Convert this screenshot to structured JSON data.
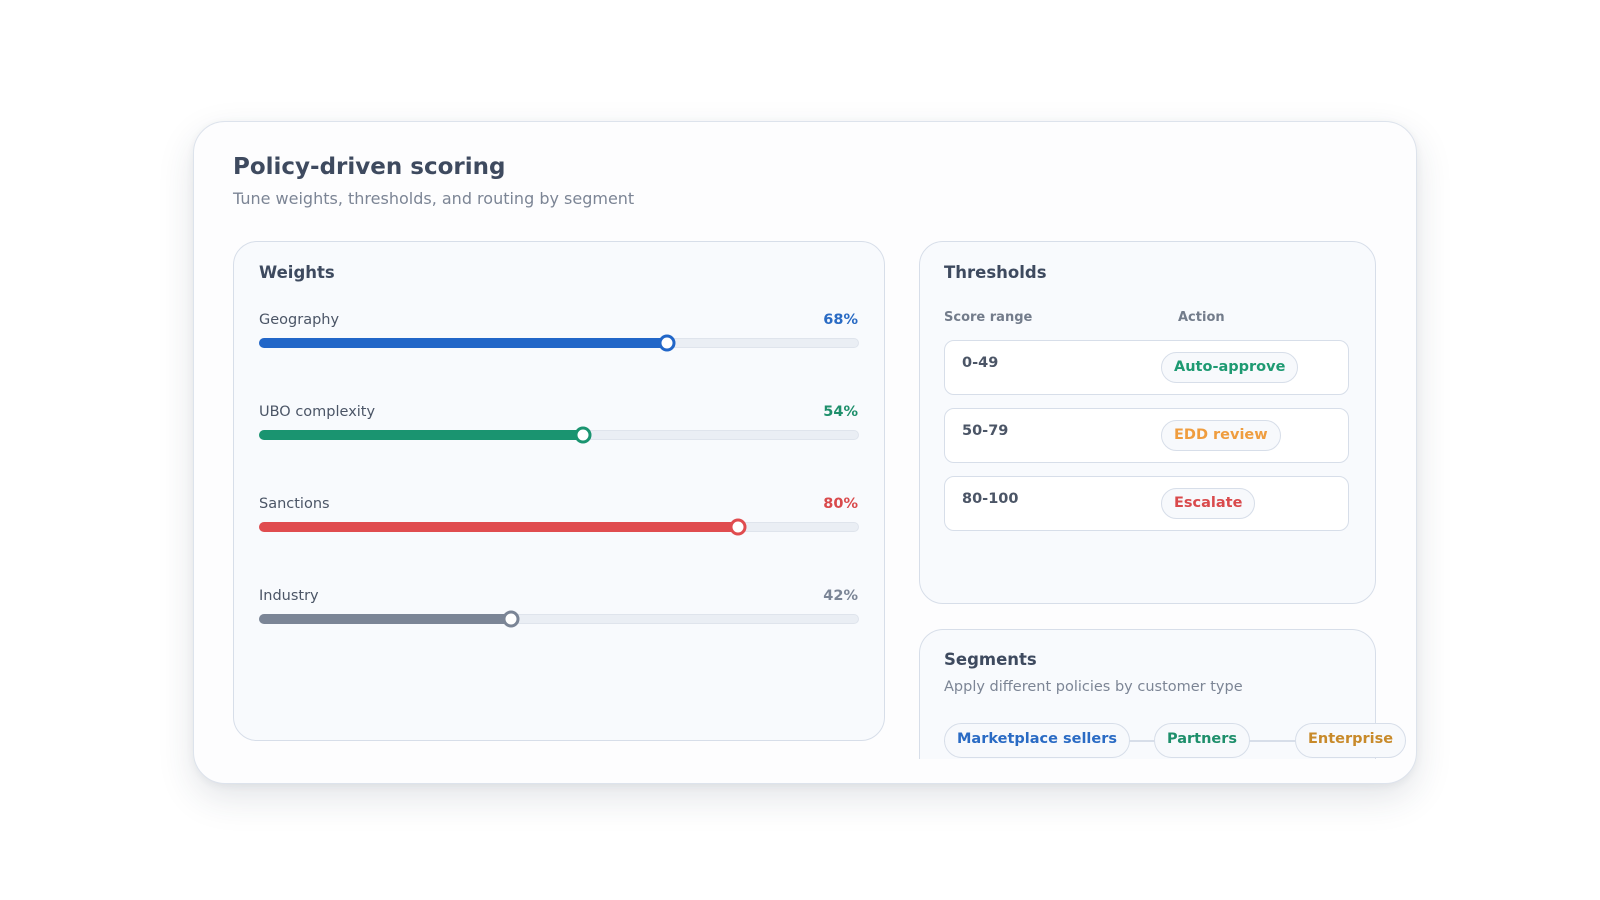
{
  "header": {
    "title": "Policy-driven scoring",
    "subtitle": "Tune weights, thresholds, and routing by segment"
  },
  "weights": {
    "title": "Weights",
    "items": [
      {
        "label": "Geography",
        "value_text": "68%",
        "value": 0.68,
        "color": "#2166c8",
        "value_color": "#2a6bc4"
      },
      {
        "label": "UBO complexity",
        "value_text": "54%",
        "value": 0.54,
        "color": "#1a9470",
        "value_color": "#1e8f6b"
      },
      {
        "label": "Sanctions",
        "value_text": "80%",
        "value": 0.8,
        "color": "#e04c4f",
        "value_color": "#d94a4c"
      },
      {
        "label": "Industry",
        "value_text": "42%",
        "value": 0.42,
        "color": "#7b8596",
        "value_color": "#7b8596"
      }
    ]
  },
  "thresholds": {
    "title": "Thresholds",
    "col_range": "Score range",
    "col_action": "Action",
    "rows": [
      {
        "range": "0-49",
        "action": "Auto-approve",
        "color": "#1e9a72"
      },
      {
        "range": "50-79",
        "action": "EDD review",
        "color": "#ef9d3f"
      },
      {
        "range": "80-100",
        "action": "Escalate",
        "color": "#d94a4c"
      }
    ]
  },
  "segments": {
    "title": "Segments",
    "subtitle": "Apply different policies by customer type",
    "items": [
      {
        "label": "Marketplace sellers",
        "color": "#2a6bc4"
      },
      {
        "label": "Partners",
        "color": "#1e8f6b"
      },
      {
        "label": "Enterprise",
        "color": "#c88a2a"
      }
    ]
  }
}
